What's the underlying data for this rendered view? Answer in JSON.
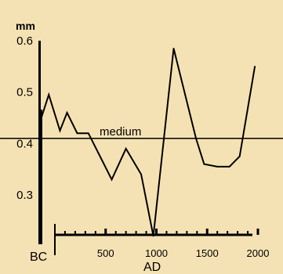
{
  "background_color": "#f5e2b4",
  "chart_data": {
    "type": "line",
    "title": "",
    "ylabel": "mm",
    "xlabel": "AD",
    "x_era_labels": [
      "BC",
      "AD"
    ],
    "ylim": [
      0.22,
      0.6
    ],
    "xlim": [
      -150,
      2070
    ],
    "y_ticks": [
      0.3,
      0.4,
      0.5,
      0.6
    ],
    "y_tick_labels": [
      "0.3",
      "0.4",
      "0.5",
      "0.6"
    ],
    "x_ticks": [
      500,
      1000,
      1500,
      2000
    ],
    "x_tick_labels": [
      "500",
      "1000",
      "1500",
      "2000"
    ],
    "grid": false,
    "series": [
      {
        "color": "#000000",
        "x": [
          -150,
          -60,
          50,
          120,
          220,
          330,
          560,
          700,
          850,
          970,
          1170,
          1390,
          1470,
          1600,
          1720,
          1820,
          1970
        ],
        "y": [
          0.44,
          0.495,
          0.425,
          0.46,
          0.42,
          0.42,
          0.33,
          0.39,
          0.34,
          0.22,
          0.585,
          0.41,
          0.36,
          0.355,
          0.355,
          0.375,
          0.55
        ]
      }
    ],
    "reference_line": {
      "label": "medium",
      "y": 0.41
    }
  }
}
